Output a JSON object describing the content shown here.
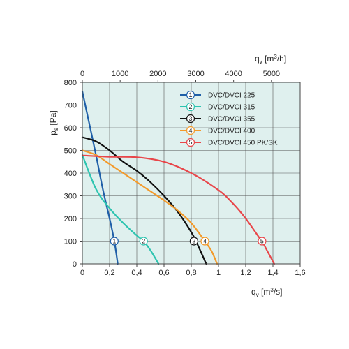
{
  "chart_data": {
    "type": "line",
    "xlabel": "q_v [m^3/s]",
    "x2label": "q_v [m^3/h]",
    "ylabel": "p_s [Pa]",
    "xlim": [
      0,
      1.6
    ],
    "ylim": [
      0,
      800
    ],
    "x_ticks": [
      "0",
      "0,2",
      "0,4",
      "0,6",
      "0,8",
      "1",
      "1,2",
      "1,4",
      "1,6"
    ],
    "x_tick_values": [
      0,
      0.2,
      0.4,
      0.6,
      0.8,
      1.0,
      1.2,
      1.4,
      1.6
    ],
    "x2_ticks": [
      "0",
      "1000",
      "2000",
      "3000",
      "4000",
      "5000"
    ],
    "x2_tick_values_m3h": [
      0,
      1000,
      2000,
      3000,
      4000,
      5000
    ],
    "y_ticks": [
      "0",
      "100",
      "200",
      "300",
      "400",
      "500",
      "600",
      "700",
      "800"
    ],
    "y_tick_values": [
      0,
      100,
      200,
      300,
      400,
      500,
      600,
      700,
      800
    ],
    "grid": true,
    "background_color": "#dff0ee",
    "legend_position": "top-right",
    "series": [
      {
        "id": "1",
        "name": "DVC/DVCI 225",
        "color": "#1f5fa8",
        "marker_label": "1",
        "marker_at": [
          0.235,
          100
        ],
        "points": [
          [
            0,
            760
          ],
          [
            0.05,
            620
          ],
          [
            0.1,
            480
          ],
          [
            0.15,
            330
          ],
          [
            0.2,
            200
          ],
          [
            0.235,
            100
          ],
          [
            0.26,
            0
          ]
        ]
      },
      {
        "id": "2",
        "name": "DVC/DVCI 315",
        "color": "#2ec4b0",
        "marker_label": "2",
        "marker_at": [
          0.45,
          100
        ],
        "points": [
          [
            0,
            480
          ],
          [
            0.1,
            330
          ],
          [
            0.2,
            245
          ],
          [
            0.3,
            180
          ],
          [
            0.4,
            125
          ],
          [
            0.45,
            100
          ],
          [
            0.5,
            60
          ],
          [
            0.56,
            0
          ]
        ]
      },
      {
        "id": "3",
        "name": "DVC/DVCI 355",
        "color": "#111111",
        "marker_label": "3",
        "marker_at": [
          0.82,
          100
        ],
        "points": [
          [
            0,
            558
          ],
          [
            0.1,
            540
          ],
          [
            0.2,
            500
          ],
          [
            0.3,
            450
          ],
          [
            0.4,
            410
          ],
          [
            0.5,
            360
          ],
          [
            0.6,
            300
          ],
          [
            0.7,
            230
          ],
          [
            0.8,
            140
          ],
          [
            0.85,
            80
          ],
          [
            0.91,
            0
          ]
        ]
      },
      {
        "id": "4",
        "name": "DVC/DVCI 400",
        "color": "#f39a2b",
        "marker_label": "4",
        "marker_at": [
          0.9,
          100
        ],
        "points": [
          [
            0,
            500
          ],
          [
            0.1,
            480
          ],
          [
            0.2,
            440
          ],
          [
            0.3,
            400
          ],
          [
            0.4,
            360
          ],
          [
            0.5,
            320
          ],
          [
            0.6,
            280
          ],
          [
            0.7,
            235
          ],
          [
            0.8,
            180
          ],
          [
            0.9,
            100
          ],
          [
            0.95,
            55
          ],
          [
            0.99,
            0
          ]
        ]
      },
      {
        "id": "5",
        "name": "DVC/DVCI 450 PK/SK",
        "color": "#e8464a",
        "marker_label": "5",
        "marker_at": [
          1.32,
          100
        ],
        "points": [
          [
            0,
            478
          ],
          [
            0.2,
            472
          ],
          [
            0.4,
            470
          ],
          [
            0.6,
            450
          ],
          [
            0.8,
            400
          ],
          [
            1.0,
            325
          ],
          [
            1.1,
            270
          ],
          [
            1.2,
            200
          ],
          [
            1.3,
            115
          ],
          [
            1.32,
            100
          ],
          [
            1.36,
            55
          ],
          [
            1.41,
            0
          ]
        ]
      }
    ]
  }
}
